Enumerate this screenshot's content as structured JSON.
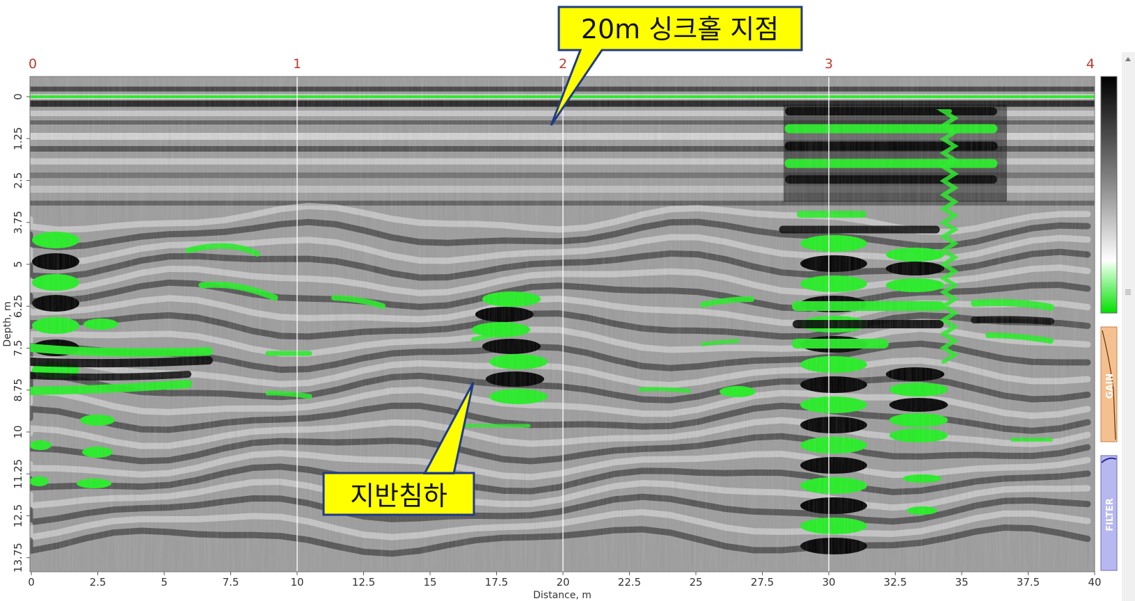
{
  "chart_data": {
    "type": "heatmap",
    "xlabel": "Distance, m",
    "ylabel": "Depth, m",
    "xlim": [
      0,
      40
    ],
    "ylim": [
      0,
      14.2
    ],
    "x_ticks": [
      "0",
      "2.5",
      "5",
      "7.5",
      "10",
      "12.5",
      "15",
      "17.5",
      "20",
      "22.5",
      "25",
      "27.5",
      "30",
      "32.5",
      "35",
      "37.5",
      "40"
    ],
    "x_tick_values": [
      0,
      2.5,
      5,
      7.5,
      10,
      12.5,
      15,
      17.5,
      20,
      22.5,
      25,
      27.5,
      30,
      32.5,
      35,
      37.5,
      40
    ],
    "y_ticks": [
      "0",
      "1.25",
      "2.5",
      "3.75",
      "5",
      "6.25",
      "7.5",
      "8.75",
      "10",
      "11.25",
      "12.5",
      "13.75"
    ],
    "y_tick_values": [
      0,
      1.25,
      2.5,
      3.75,
      5,
      6.25,
      7.5,
      8.75,
      10,
      11.25,
      12.5,
      13.75
    ],
    "segment_labels": [
      "0",
      "1",
      "2",
      "3",
      "4"
    ],
    "segment_values": [
      0,
      10,
      20,
      30,
      40
    ],
    "grid": "vertical markers at 10 m intervals",
    "colors": {
      "high": "#22ee22",
      "low": "#000000",
      "mid": "#9a9a9a",
      "segment": "#c0392b",
      "callout": "#ffff00"
    },
    "annotations": [
      {
        "text": "20m 싱크홀 지점",
        "x": 20,
        "y": 0.8
      },
      {
        "text": "지반침하",
        "x": 17.3,
        "y": 8.5
      }
    ],
    "side_panels": [
      {
        "label": "GAIN",
        "color": "#f4c090",
        "icon": "gain-curve-icon"
      },
      {
        "label": "FILTER",
        "color": "#b8b8f0",
        "icon": "filter-curve-icon"
      }
    ]
  }
}
